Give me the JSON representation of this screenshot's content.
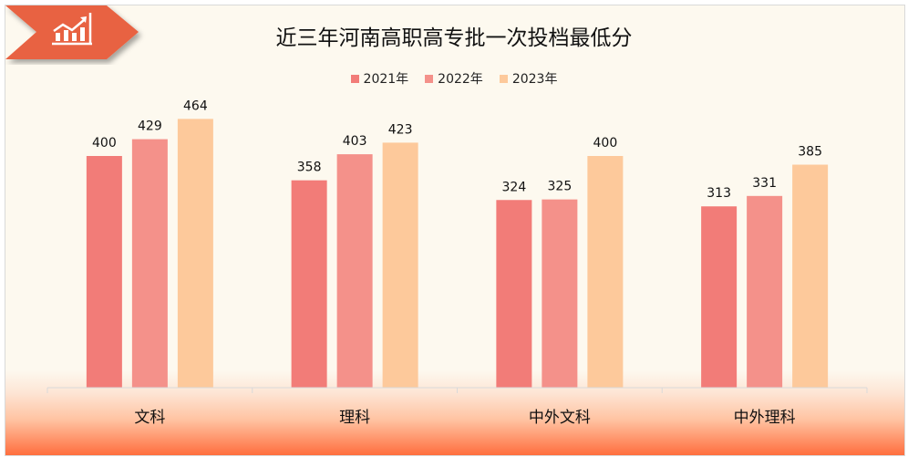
{
  "chart_data": {
    "type": "bar",
    "title": "近三年河南高职高专批一次投档最低分",
    "categories": [
      "文科",
      "理科",
      "中外文科",
      "中外理科"
    ],
    "series": [
      {
        "name": "2021年",
        "values": [
          400,
          358,
          324,
          313
        ],
        "color": "#f27c78"
      },
      {
        "name": "2022年",
        "values": [
          429,
          403,
          325,
          331
        ],
        "color": "#f4918a"
      },
      {
        "name": "2023年",
        "values": [
          464,
          423,
          400,
          385
        ],
        "color": "#fdc99b"
      }
    ],
    "ylim": [
      0,
      500
    ],
    "grid": false,
    "legend": "top-center",
    "data_labels": true
  },
  "badge": {
    "icon": "growth-chart-icon",
    "color": "#e86242"
  }
}
